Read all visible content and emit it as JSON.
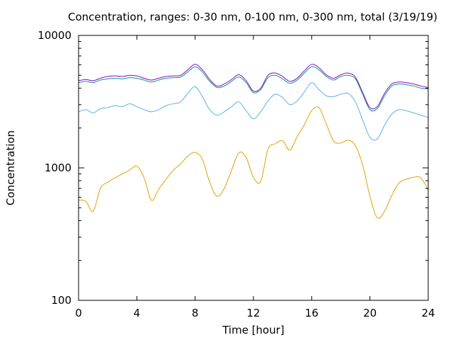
{
  "chart_data": {
    "type": "line",
    "title": "Concentration, ranges: 0-30 nm, 0-100 nm, 0-300 nm, total (3/19/19)",
    "xlabel": "Time [hour]",
    "ylabel": "Concentration",
    "xlim": [
      0,
      24
    ],
    "ylim": [
      100,
      10000
    ],
    "yscale": "log",
    "grid": false,
    "legend": "none",
    "x_ticks": [
      "0",
      "4",
      "8",
      "12",
      "16",
      "20",
      "24"
    ],
    "y_ticks": [
      "100",
      "1000",
      "10000"
    ],
    "x": [
      0,
      0.5,
      1,
      1.5,
      2,
      2.5,
      3,
      3.5,
      4,
      4.5,
      5,
      5.5,
      6,
      6.5,
      7,
      7.5,
      8,
      8.5,
      9,
      9.5,
      10,
      10.5,
      11,
      11.5,
      12,
      12.5,
      13,
      13.5,
      14,
      14.5,
      15,
      15.5,
      16,
      16.5,
      17,
      17.5,
      18,
      18.5,
      19,
      19.5,
      20,
      20.5,
      21,
      21.5,
      22,
      22.5,
      23,
      23.5,
      24
    ],
    "series": [
      {
        "color": "#e69f00",
        "values": [
          570,
          560,
          470,
          700,
          780,
          840,
          900,
          960,
          1030,
          840,
          570,
          690,
          820,
          960,
          1070,
          1230,
          1310,
          1160,
          780,
          610,
          700,
          960,
          1300,
          1200,
          850,
          790,
          1380,
          1520,
          1600,
          1360,
          1720,
          2120,
          2700,
          2850,
          2150,
          1600,
          1540,
          1620,
          1470,
          1050,
          610,
          420,
          470,
          620,
          770,
          820,
          850,
          840,
          680
        ]
      },
      {
        "color": "#56b4e9",
        "values": [
          2650,
          2750,
          2600,
          2800,
          2850,
          2950,
          2900,
          3050,
          2900,
          2750,
          2650,
          2750,
          2950,
          3050,
          3150,
          3650,
          4100,
          3450,
          2750,
          2500,
          2650,
          2900,
          3150,
          2700,
          2350,
          2650,
          3200,
          3600,
          3400,
          3000,
          3200,
          3750,
          4400,
          3900,
          3500,
          3450,
          3600,
          3650,
          3150,
          2300,
          1700,
          1650,
          2100,
          2550,
          2750,
          2700,
          2600,
          2500,
          2400
        ]
      },
      {
        "color": "#009e73",
        "values": [
          4400,
          4500,
          4400,
          4600,
          4700,
          4750,
          4700,
          4800,
          4750,
          4600,
          4450,
          4600,
          4750,
          4800,
          4850,
          5300,
          5800,
          5300,
          4500,
          4050,
          4150,
          4500,
          4850,
          4400,
          3700,
          3900,
          4800,
          5000,
          4700,
          4350,
          4600,
          5200,
          5800,
          5500,
          4900,
          4600,
          4900,
          5000,
          4700,
          3600,
          2750,
          2800,
          3500,
          4150,
          4300,
          4250,
          4150,
          4000,
          3950
        ]
      },
      {
        "color": "#9400d3",
        "values": [
          4550,
          4650,
          4550,
          4750,
          4900,
          4950,
          4900,
          5000,
          4950,
          4750,
          4600,
          4750,
          4900,
          4950,
          5000,
          5500,
          6050,
          5500,
          4650,
          4150,
          4300,
          4650,
          5050,
          4550,
          3800,
          4000,
          5000,
          5200,
          4900,
          4500,
          4750,
          5400,
          6050,
          5700,
          5050,
          4750,
          5050,
          5200,
          4850,
          3700,
          2850,
          2900,
          3650,
          4300,
          4450,
          4400,
          4300,
          4150,
          4050
        ]
      }
    ]
  }
}
